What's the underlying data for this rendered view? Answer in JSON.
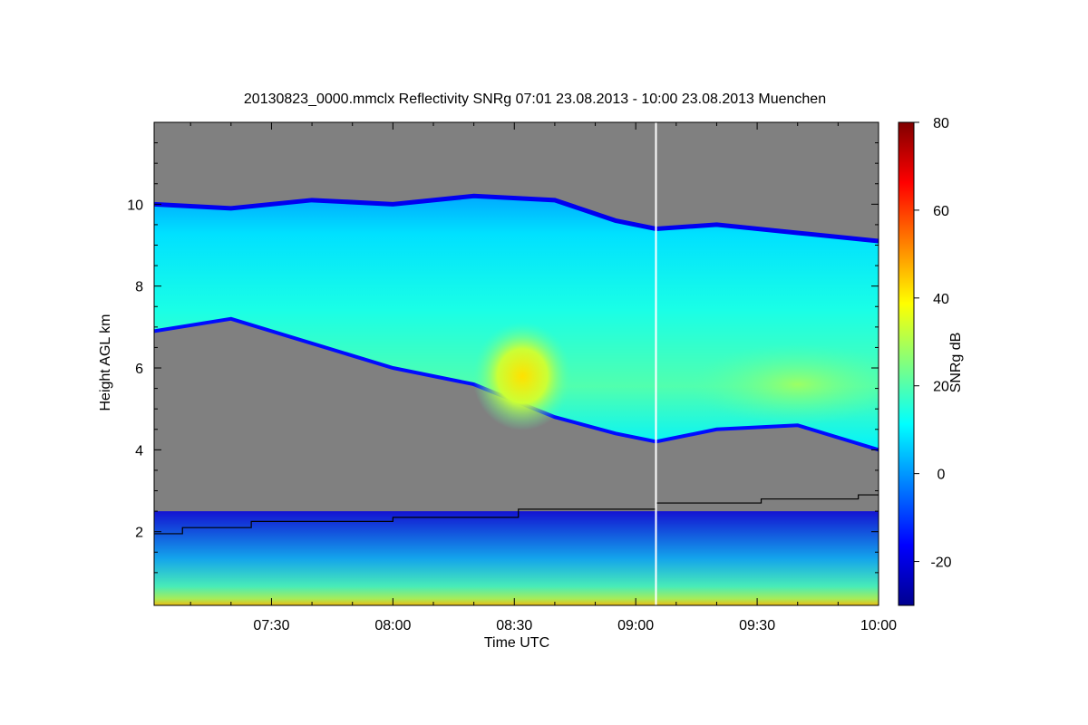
{
  "chart_data": {
    "type": "heatmap",
    "title": "20130823_0000.mmclx Reflectivity SNRg   07:01 23.08.2013 - 10:00 23.08.2013 Muenchen",
    "xlabel": "Time UTC",
    "ylabel": "Height AGL km",
    "colorbar_label": "SNRg dB",
    "x_range_minutes": [
      421,
      600
    ],
    "xticks": [
      {
        "label": "07:30",
        "minutes": 450
      },
      {
        "label": "08:00",
        "minutes": 480
      },
      {
        "label": "08:30",
        "minutes": 510
      },
      {
        "label": "09:00",
        "minutes": 540
      },
      {
        "label": "09:30",
        "minutes": 570
      },
      {
        "label": "10:00",
        "minutes": 600
      }
    ],
    "ylim_km": [
      0.2,
      12.0
    ],
    "yticks": [
      {
        "label": "2",
        "value": 2
      },
      {
        "label": "4",
        "value": 4
      },
      {
        "label": "6",
        "value": 6
      },
      {
        "label": "8",
        "value": 8
      },
      {
        "label": "10",
        "value": 10
      }
    ],
    "colorbar_range_db": [
      -30,
      80
    ],
    "colorbar_ticks": [
      {
        "label": "-20",
        "value": -20
      },
      {
        "label": "0",
        "value": 0
      },
      {
        "label": "20",
        "value": 20
      },
      {
        "label": "40",
        "value": 40
      },
      {
        "label": "60",
        "value": 60
      },
      {
        "label": "80",
        "value": 80
      }
    ],
    "background_color": "#808080",
    "colormap": [
      "#00008f",
      "#0000ff",
      "#0080ff",
      "#00ffff",
      "#80ff80",
      "#ffff00",
      "#ff8000",
      "#ff0000",
      "#800000"
    ],
    "data_gap_minutes": 545,
    "cloud_layer": {
      "time_minutes": [
        421,
        440,
        460,
        480,
        500,
        520,
        535,
        545,
        560,
        580,
        600
      ],
      "top_km": [
        10.0,
        9.9,
        10.1,
        10.0,
        10.2,
        10.1,
        9.6,
        9.4,
        9.5,
        9.3,
        9.1
      ],
      "base_km": [
        6.9,
        7.2,
        6.6,
        6.0,
        5.6,
        4.8,
        4.4,
        4.2,
        4.5,
        4.6,
        4.0
      ]
    },
    "low_layer_top_km": 2.5,
    "boundary_layer_line": {
      "time_minutes": [
        421,
        428,
        428,
        445,
        445,
        480,
        480,
        511,
        511,
        545,
        545,
        571,
        571,
        595,
        595,
        600
      ],
      "height_km": [
        1.95,
        1.95,
        2.1,
        2.1,
        2.25,
        2.25,
        2.35,
        2.35,
        2.55,
        2.55,
        2.7,
        2.7,
        2.8,
        2.8,
        2.9,
        2.9
      ]
    }
  }
}
